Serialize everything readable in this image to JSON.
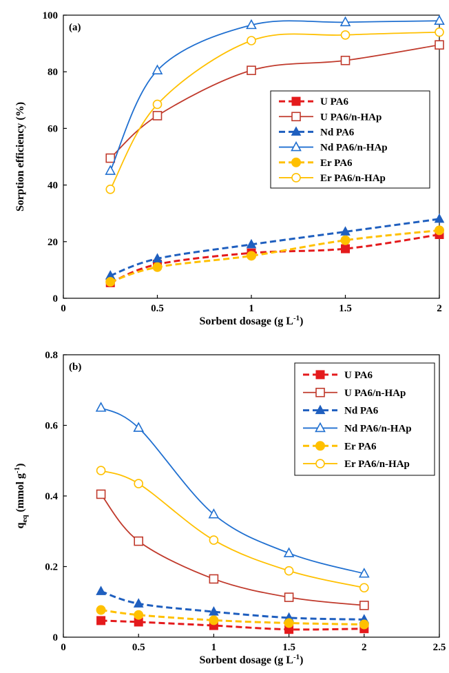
{
  "chart_data": [
    {
      "type": "line",
      "panel_label": "(a)",
      "xlabel": "Sorbent dosage (g L",
      "xlabel_sup": "-1",
      "xlabel_end": ")",
      "ylabel": "Sorption efficiency (%)",
      "xlim": [
        0,
        2
      ],
      "ylim": [
        0,
        100
      ],
      "xticks": [
        0,
        0.5,
        1,
        1.5,
        2
      ],
      "xtick_labels": [
        "0",
        "0.5",
        "1",
        "1.5",
        "2"
      ],
      "yticks": [
        0,
        20,
        40,
        60,
        80,
        100
      ],
      "ytick_labels": [
        "0",
        "20",
        "40",
        "60",
        "80",
        "100"
      ],
      "legend_position": "middle-right",
      "x": [
        0.25,
        0.5,
        1,
        1.5,
        2
      ],
      "series": [
        {
          "name": "U PA6",
          "values": [
            5.5,
            12,
            16,
            17.5,
            22.5
          ],
          "color": "#e41a1c",
          "marker": "square-filled",
          "dashed": true
        },
        {
          "name": "U PA6/n-HAp",
          "values": [
            49.5,
            64.5,
            80.5,
            84,
            89.5
          ],
          "color": "#c0392b",
          "marker": "square-open",
          "dashed": false
        },
        {
          "name": "Nd PA6",
          "values": [
            8,
            14,
            19,
            23.5,
            28
          ],
          "color": "#1f5fbf",
          "marker": "triangle-filled",
          "dashed": true
        },
        {
          "name": "Nd PA6/n-HAp",
          "values": [
            45,
            80.5,
            96.5,
            97.5,
            98
          ],
          "color": "#1f6fd0",
          "marker": "triangle-open",
          "dashed": false
        },
        {
          "name": "Er PA6",
          "values": [
            5.8,
            11,
            15,
            20.5,
            24
          ],
          "color": "#ffc000",
          "marker": "circle-filled",
          "dashed": true
        },
        {
          "name": "Er PA6/n-HAp",
          "values": [
            38.5,
            68.5,
            91,
            93,
            94
          ],
          "color": "#ffc000",
          "marker": "circle-open",
          "dashed": false
        }
      ]
    },
    {
      "type": "line",
      "panel_label": "(b)",
      "xlabel": "Sorbent dosage (g L",
      "xlabel_sup": "-1",
      "xlabel_end": ")",
      "ylabel": "q",
      "ylabel_sub": "eq",
      "ylabel_end": " (mmol g",
      "ylabel_sup": "-1",
      "ylabel_close": ")",
      "xlim": [
        0,
        2.5
      ],
      "ylim": [
        0,
        0.8
      ],
      "xticks": [
        0,
        0.5,
        1,
        1.5,
        2,
        2.5
      ],
      "xtick_labels": [
        "0",
        "0.5",
        "1",
        "1.5",
        "2",
        "2.5"
      ],
      "yticks": [
        0,
        0.2,
        0.4,
        0.6,
        0.8
      ],
      "ytick_labels": [
        "0",
        "0.2",
        "0.4",
        "0.6",
        "0.8"
      ],
      "legend_position": "top-right",
      "x": [
        0.25,
        0.5,
        1,
        1.5,
        2
      ],
      "series": [
        {
          "name": "U PA6",
          "values": [
            0.047,
            0.043,
            0.033,
            0.022,
            0.024
          ],
          "color": "#e41a1c",
          "marker": "square-filled",
          "dashed": true
        },
        {
          "name": "U PA6/n-HAp",
          "values": [
            0.405,
            0.272,
            0.165,
            0.113,
            0.09
          ],
          "color": "#c0392b",
          "marker": "square-open",
          "dashed": false
        },
        {
          "name": "Nd PA6",
          "values": [
            0.13,
            0.095,
            0.072,
            0.055,
            0.05
          ],
          "color": "#1f5fbf",
          "marker": "triangle-filled",
          "dashed": true
        },
        {
          "name": "Nd PA6/n-HAp",
          "values": [
            0.65,
            0.593,
            0.348,
            0.238,
            0.18
          ],
          "color": "#1f6fd0",
          "marker": "triangle-open",
          "dashed": false
        },
        {
          "name": "Er PA6",
          "values": [
            0.077,
            0.063,
            0.048,
            0.04,
            0.036
          ],
          "color": "#ffc000",
          "marker": "circle-filled",
          "dashed": true
        },
        {
          "name": "Er PA6/n-HAp",
          "values": [
            0.472,
            0.435,
            0.275,
            0.188,
            0.14
          ],
          "color": "#ffc000",
          "marker": "circle-open",
          "dashed": false
        }
      ]
    }
  ]
}
